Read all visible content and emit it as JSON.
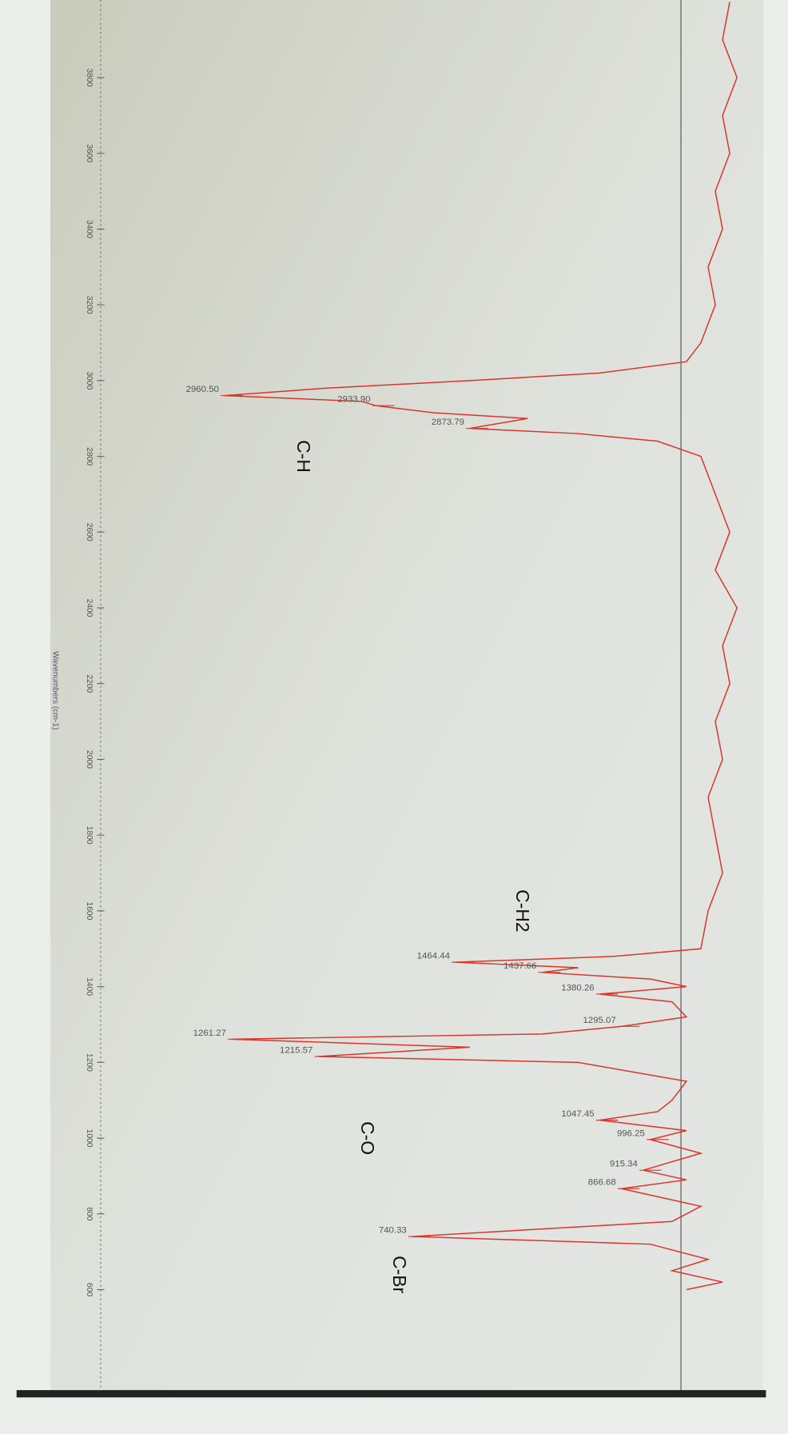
{
  "chart_data": {
    "type": "line",
    "x_label": "Wavenumbers (cm-1)",
    "xlim": [
      4000,
      400
    ],
    "xticks": [
      3800,
      3600,
      3400,
      3200,
      3000,
      2800,
      2600,
      2400,
      2200,
      2000,
      1800,
      1600,
      1400,
      1200,
      1000,
      800,
      600
    ],
    "ylim": [
      0,
      100
    ],
    "series": [
      {
        "color": "#d9352b",
        "x": [
          4000,
          3900,
          3800,
          3700,
          3600,
          3500,
          3400,
          3300,
          3200,
          3100,
          3050,
          3020,
          3000,
          2980,
          2960.5,
          2945,
          2933.9,
          2915,
          2900,
          2873.79,
          2860,
          2840,
          2800,
          2700,
          2600,
          2500,
          2400,
          2300,
          2200,
          2100,
          2000,
          1900,
          1800,
          1700,
          1600,
          1500,
          1480,
          1464.44,
          1450,
          1437.66,
          1420,
          1400,
          1380.26,
          1360,
          1320,
          1295.07,
          1275,
          1261.27,
          1240,
          1215.57,
          1200,
          1150,
          1100,
          1070,
          1047.45,
          1020,
          996.25,
          960,
          915.34,
          890,
          866.68,
          820,
          780,
          740.33,
          720,
          680,
          650,
          620,
          600
        ],
        "values": [
          96,
          95,
          97,
          95,
          96,
          94,
          95,
          93,
          94,
          92,
          90,
          78,
          60,
          40,
          26,
          45,
          47,
          55,
          68,
          60,
          75,
          86,
          92,
          94,
          96,
          94,
          97,
          95,
          96,
          94,
          95,
          93,
          94,
          95,
          93,
          92,
          80,
          58,
          75,
          70,
          85,
          90,
          78,
          88,
          90,
          81,
          70,
          27,
          60,
          39,
          75,
          90,
          88,
          86,
          78,
          90,
          85,
          92,
          84,
          90,
          81,
          92,
          88,
          52,
          85,
          93,
          88,
          95,
          90
        ]
      }
    ],
    "annotations": [
      {
        "value": 2960.5,
        "label": "2960.50"
      },
      {
        "value": 2933.9,
        "label": "2933.90"
      },
      {
        "value": 2873.79,
        "label": "2873.79"
      },
      {
        "value": 1464.44,
        "label": "1464.44"
      },
      {
        "value": 1437.66,
        "label": "1437.66"
      },
      {
        "value": 1380.26,
        "label": "1380.26"
      },
      {
        "value": 1295.07,
        "label": "1295.07"
      },
      {
        "value": 1261.27,
        "label": "1261.27"
      },
      {
        "value": 1215.57,
        "label": "1215.57"
      },
      {
        "value": 1047.45,
        "label": "1047.45"
      },
      {
        "value": 996.25,
        "label": "996.25"
      },
      {
        "value": 915.34,
        "label": "915.34"
      },
      {
        "value": 866.68,
        "label": "866.68"
      },
      {
        "value": 740.33,
        "label": "740.33"
      }
    ],
    "groups": [
      {
        "value": 2800,
        "label": "C-H"
      },
      {
        "value": 1600,
        "label": "C-H2"
      },
      {
        "value": 1000,
        "label": "C-O"
      },
      {
        "value": 640,
        "label": "C-Br"
      }
    ]
  }
}
